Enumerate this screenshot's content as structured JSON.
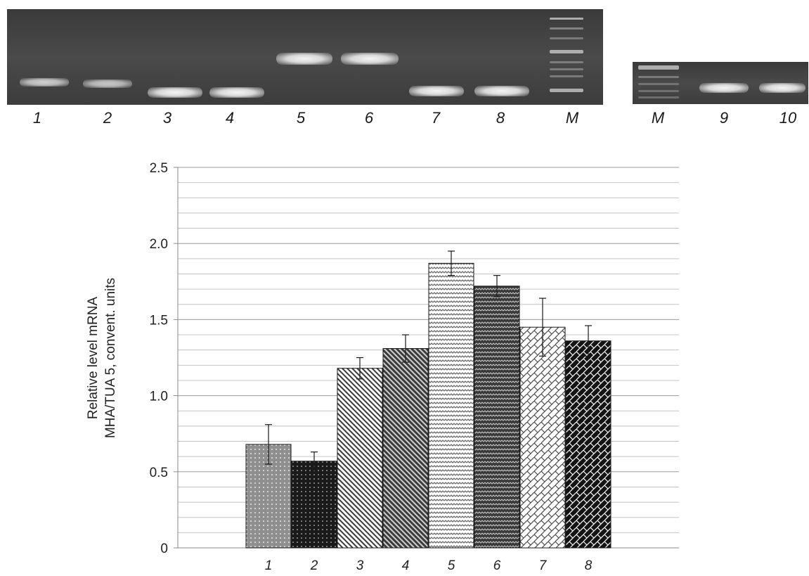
{
  "gel": {
    "main_lanes": [
      "1",
      "2",
      "3",
      "4",
      "5",
      "6",
      "7",
      "8",
      "M"
    ],
    "side_lanes": [
      "M",
      "9",
      "10"
    ]
  },
  "chart_data": {
    "type": "bar",
    "categories": [
      "1",
      "2",
      "3",
      "4",
      "5",
      "6",
      "7",
      "8"
    ],
    "values": [
      0.68,
      0.57,
      1.18,
      1.31,
      1.87,
      1.72,
      1.45,
      1.36
    ],
    "errors": [
      0.13,
      0.06,
      0.07,
      0.09,
      0.08,
      0.07,
      0.19,
      0.1
    ],
    "ylabel": [
      "Relative level mRNA",
      "MHA/TUA 5, convent. units"
    ],
    "yticks": [
      "0",
      "0.5",
      "1.0",
      "1.5",
      "2.0",
      "2.5"
    ],
    "ylim": [
      0,
      2.5
    ],
    "grid": true,
    "bar_fills": [
      "dots-on-grey",
      "dots-on-black",
      "fine-diagonal",
      "dark-diagonal",
      "zigzag-light",
      "zigzag-dark",
      "weave-white",
      "weave-black"
    ]
  }
}
